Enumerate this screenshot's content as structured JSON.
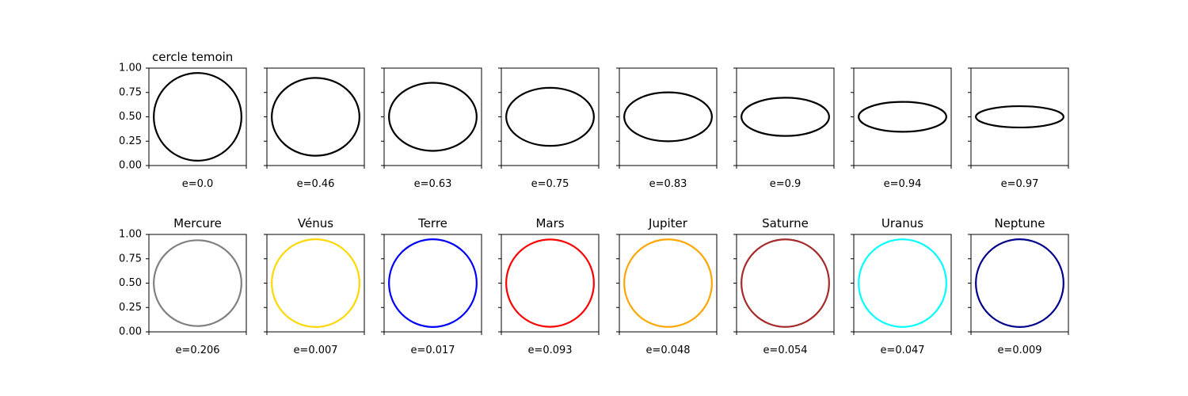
{
  "chart_data": {
    "type": "ellipse-grid",
    "yticks": [
      "0.00",
      "0.25",
      "0.50",
      "0.75",
      "1.00"
    ],
    "ylim": [
      0,
      1
    ],
    "xlim": [
      0,
      1
    ],
    "rows": [
      {
        "title": "cercle temoin",
        "panels": [
          {
            "title": "",
            "label": "e=0.0",
            "e": 0.0,
            "color": "#000000"
          },
          {
            "title": "",
            "label": "e=0.46",
            "e": 0.46,
            "color": "#000000"
          },
          {
            "title": "",
            "label": "e=0.63",
            "e": 0.63,
            "color": "#000000"
          },
          {
            "title": "",
            "label": "e=0.75",
            "e": 0.75,
            "color": "#000000"
          },
          {
            "title": "",
            "label": "e=0.83",
            "e": 0.83,
            "color": "#000000"
          },
          {
            "title": "",
            "label": "e=0.9",
            "e": 0.9,
            "color": "#000000"
          },
          {
            "title": "",
            "label": "e=0.94",
            "e": 0.94,
            "color": "#000000"
          },
          {
            "title": "",
            "label": "e=0.97",
            "e": 0.97,
            "color": "#000000"
          }
        ]
      },
      {
        "title": "",
        "panels": [
          {
            "title": "Mercure",
            "label": "e=0.206",
            "e": 0.206,
            "color": "#808080"
          },
          {
            "title": "Vénus",
            "label": "e=0.007",
            "e": 0.007,
            "color": "#ffd700"
          },
          {
            "title": "Terre",
            "label": "e=0.017",
            "e": 0.017,
            "color": "#0000ff"
          },
          {
            "title": "Mars",
            "label": "e=0.093",
            "e": 0.093,
            "color": "#ff0000"
          },
          {
            "title": "Jupiter",
            "label": "e=0.048",
            "e": 0.048,
            "color": "#ffa500"
          },
          {
            "title": "Saturne",
            "label": "e=0.054",
            "e": 0.054,
            "color": "#a52a2a"
          },
          {
            "title": "Uranus",
            "label": "e=0.047",
            "e": 0.047,
            "color": "#00ffff"
          },
          {
            "title": "Neptune",
            "label": "e=0.009",
            "e": 0.009,
            "color": "#00008b"
          }
        ]
      }
    ]
  }
}
